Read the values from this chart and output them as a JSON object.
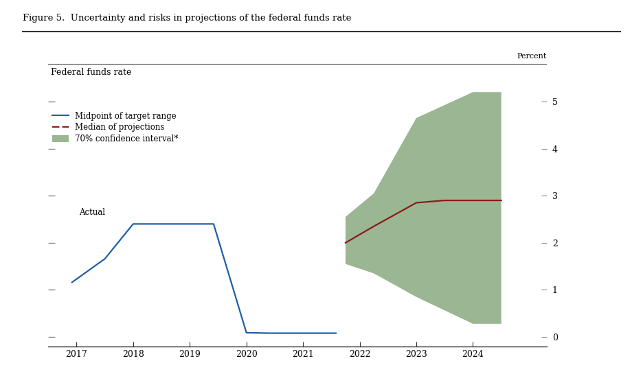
{
  "title": "Figure 5.  Uncertainty and risks in projections of the federal funds rate",
  "ylabel_right": "Percent",
  "ylabel_left": "Federal funds rate",
  "actual_label": "Actual",
  "background_color": "#ffffff",
  "actual_x": [
    2016.92,
    2017.5,
    2018.0,
    2018.5,
    2019.0,
    2019.42,
    2020.0,
    2020.42,
    2021.0,
    2021.58
  ],
  "actual_y": [
    1.16,
    1.66,
    2.4,
    2.4,
    2.4,
    2.4,
    0.09,
    0.08,
    0.08,
    0.08
  ],
  "median_x": [
    2021.75,
    2022.25,
    2023.0,
    2023.5,
    2024.0,
    2024.5
  ],
  "median_y": [
    2.0,
    2.35,
    2.85,
    2.9,
    2.9,
    2.9
  ],
  "ci_upper_x": [
    2021.75,
    2022.25,
    2023.0,
    2024.0,
    2024.5
  ],
  "ci_upper_y": [
    2.55,
    3.05,
    4.65,
    5.2,
    5.2
  ],
  "ci_lower_x": [
    2021.75,
    2022.25,
    2023.0,
    2024.0,
    2024.5
  ],
  "ci_lower_y": [
    1.55,
    1.35,
    0.85,
    0.28,
    0.28
  ],
  "actual_color": "#1f5fa6",
  "median_color": "#8b1a1a",
  "ci_color": "#7a9e6e",
  "ci_alpha": 0.75,
  "ylim": [
    -0.2,
    5.8
  ],
  "yticks": [
    0,
    1,
    2,
    3,
    4,
    5
  ],
  "xlim": [
    2016.5,
    2025.3
  ],
  "xticks": [
    2017,
    2018,
    2019,
    2020,
    2021,
    2022,
    2023,
    2024
  ],
  "legend_entries": [
    "Midpoint of target range",
    "Median of projections",
    "70% confidence interval*"
  ],
  "dash_color": "#888888",
  "spine_color": "#333333"
}
